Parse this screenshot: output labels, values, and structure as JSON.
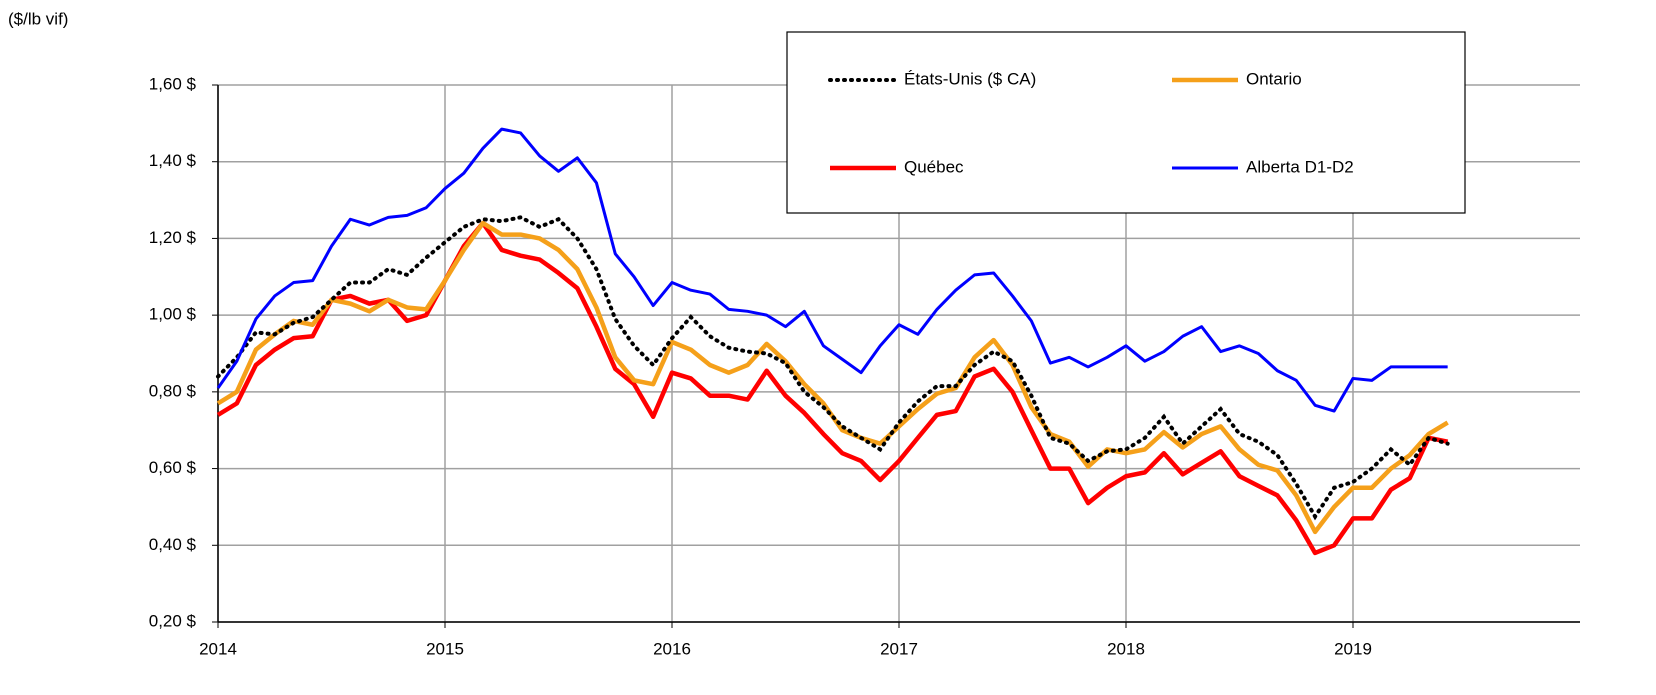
{
  "chart_data": {
    "type": "line",
    "y_unit_label": "($/lb vif)",
    "xlim": [
      2014,
      2020
    ],
    "xticks": [
      2014,
      2015,
      2016,
      2017,
      2018,
      2019
    ],
    "ylim": [
      0.2,
      1.6
    ],
    "yticks": [
      {
        "value": 0.2,
        "label": "0,20 $"
      },
      {
        "value": 0.4,
        "label": "0,40 $"
      },
      {
        "value": 0.6,
        "label": "0,60 $"
      },
      {
        "value": 0.8,
        "label": "0,80 $"
      },
      {
        "value": 1.0,
        "label": "1,00 $"
      },
      {
        "value": 1.2,
        "label": "1,20 $"
      },
      {
        "value": 1.4,
        "label": "1,40 $"
      },
      {
        "value": 1.6,
        "label": "1,60 $"
      }
    ],
    "grid": true,
    "legend": "top-right",
    "x": [
      2014,
      2014.083,
      2014.167,
      2014.25,
      2014.333,
      2014.417,
      2014.5,
      2014.583,
      2014.667,
      2014.75,
      2014.833,
      2014.917,
      2015,
      2015.083,
      2015.167,
      2015.25,
      2015.333,
      2015.417,
      2015.5,
      2015.583,
      2015.667,
      2015.75,
      2015.833,
      2015.917,
      2016,
      2016.083,
      2016.167,
      2016.25,
      2016.333,
      2016.417,
      2016.5,
      2016.583,
      2016.667,
      2016.75,
      2016.833,
      2016.917,
      2017,
      2017.083,
      2017.167,
      2017.25,
      2017.333,
      2017.417,
      2017.5,
      2017.583,
      2017.667,
      2017.75,
      2017.833,
      2017.917,
      2018,
      2018.083,
      2018.167,
      2018.25,
      2018.333,
      2018.417,
      2018.5,
      2018.583,
      2018.667,
      2018.75,
      2018.833,
      2018.917,
      2019,
      2019.083,
      2019.167,
      2019.25,
      2019.333,
      2019.417
    ],
    "series": [
      {
        "name": "États-Unis ($ CA)",
        "color": "#000000",
        "style": "dotted",
        "values": [
          0.84,
          0.89,
          0.955,
          0.95,
          0.98,
          0.995,
          1.04,
          1.085,
          1.085,
          1.12,
          1.105,
          1.15,
          1.19,
          1.23,
          1.25,
          1.245,
          1.255,
          1.23,
          1.25,
          1.2,
          1.12,
          0.99,
          0.92,
          0.87,
          0.94,
          0.995,
          0.945,
          0.915,
          0.905,
          0.9,
          0.875,
          0.8,
          0.76,
          0.71,
          0.68,
          0.65,
          0.72,
          0.775,
          0.815,
          0.815,
          0.87,
          0.905,
          0.88,
          0.79,
          0.68,
          0.665,
          0.62,
          0.645,
          0.65,
          0.68,
          0.735,
          0.665,
          0.71,
          0.755,
          0.69,
          0.67,
          0.635,
          0.56,
          0.475,
          0.55,
          0.565,
          0.6,
          0.65,
          0.61,
          0.68,
          0.665
        ]
      },
      {
        "name": "Ontario",
        "color": "#f5a01a",
        "style": "solid",
        "values": [
          0.77,
          0.8,
          0.91,
          0.95,
          0.985,
          0.975,
          1.04,
          1.03,
          1.01,
          1.04,
          1.02,
          1.015,
          1.09,
          1.17,
          1.24,
          1.21,
          1.21,
          1.2,
          1.17,
          1.12,
          1.02,
          0.89,
          0.83,
          0.82,
          0.93,
          0.91,
          0.87,
          0.85,
          0.87,
          0.925,
          0.88,
          0.82,
          0.77,
          0.7,
          0.68,
          0.665,
          0.71,
          0.755,
          0.795,
          0.81,
          0.89,
          0.935,
          0.87,
          0.76,
          0.69,
          0.67,
          0.605,
          0.65,
          0.64,
          0.65,
          0.695,
          0.655,
          0.69,
          0.71,
          0.65,
          0.61,
          0.595,
          0.53,
          0.435,
          0.5,
          0.55,
          0.55,
          0.6,
          0.635,
          0.69,
          0.72
        ]
      },
      {
        "name": "Québec",
        "color": "#ff0000",
        "style": "solid",
        "values": [
          0.74,
          0.77,
          0.87,
          0.91,
          0.94,
          0.945,
          1.04,
          1.05,
          1.03,
          1.04,
          0.985,
          1.0,
          1.09,
          1.18,
          1.24,
          1.17,
          1.155,
          1.145,
          1.11,
          1.07,
          0.97,
          0.86,
          0.82,
          0.735,
          0.85,
          0.835,
          0.79,
          0.79,
          0.78,
          0.855,
          0.79,
          0.745,
          0.69,
          0.64,
          0.62,
          0.57,
          0.62,
          0.68,
          0.74,
          0.75,
          0.84,
          0.86,
          0.8,
          0.7,
          0.6,
          0.6,
          0.51,
          0.55,
          0.58,
          0.59,
          0.64,
          0.585,
          0.615,
          0.645,
          0.58,
          0.555,
          0.53,
          0.465,
          0.38,
          0.4,
          0.47,
          0.47,
          0.545,
          0.575,
          0.68,
          0.67
        ]
      },
      {
        "name": "Alberta D1-D2",
        "color": "#0000ff",
        "style": "solid",
        "values": [
          0.81,
          0.88,
          0.99,
          1.05,
          1.085,
          1.09,
          1.18,
          1.25,
          1.235,
          1.255,
          1.26,
          1.28,
          1.33,
          1.37,
          1.435,
          1.485,
          1.475,
          1.415,
          1.375,
          1.41,
          1.345,
          1.16,
          1.1,
          1.025,
          1.085,
          1.065,
          1.055,
          1.015,
          1.01,
          1.0,
          0.97,
          1.01,
          0.92,
          0.885,
          0.85,
          0.92,
          0.975,
          0.95,
          1.015,
          1.065,
          1.105,
          1.11,
          1.05,
          0.985,
          0.875,
          0.89,
          0.865,
          0.89,
          0.92,
          0.88,
          0.905,
          0.945,
          0.97,
          0.905,
          0.92,
          0.9,
          0.855,
          0.83,
          0.765,
          0.75,
          0.835,
          0.83,
          0.865,
          0.865,
          0.865,
          0.865
        ]
      }
    ]
  }
}
